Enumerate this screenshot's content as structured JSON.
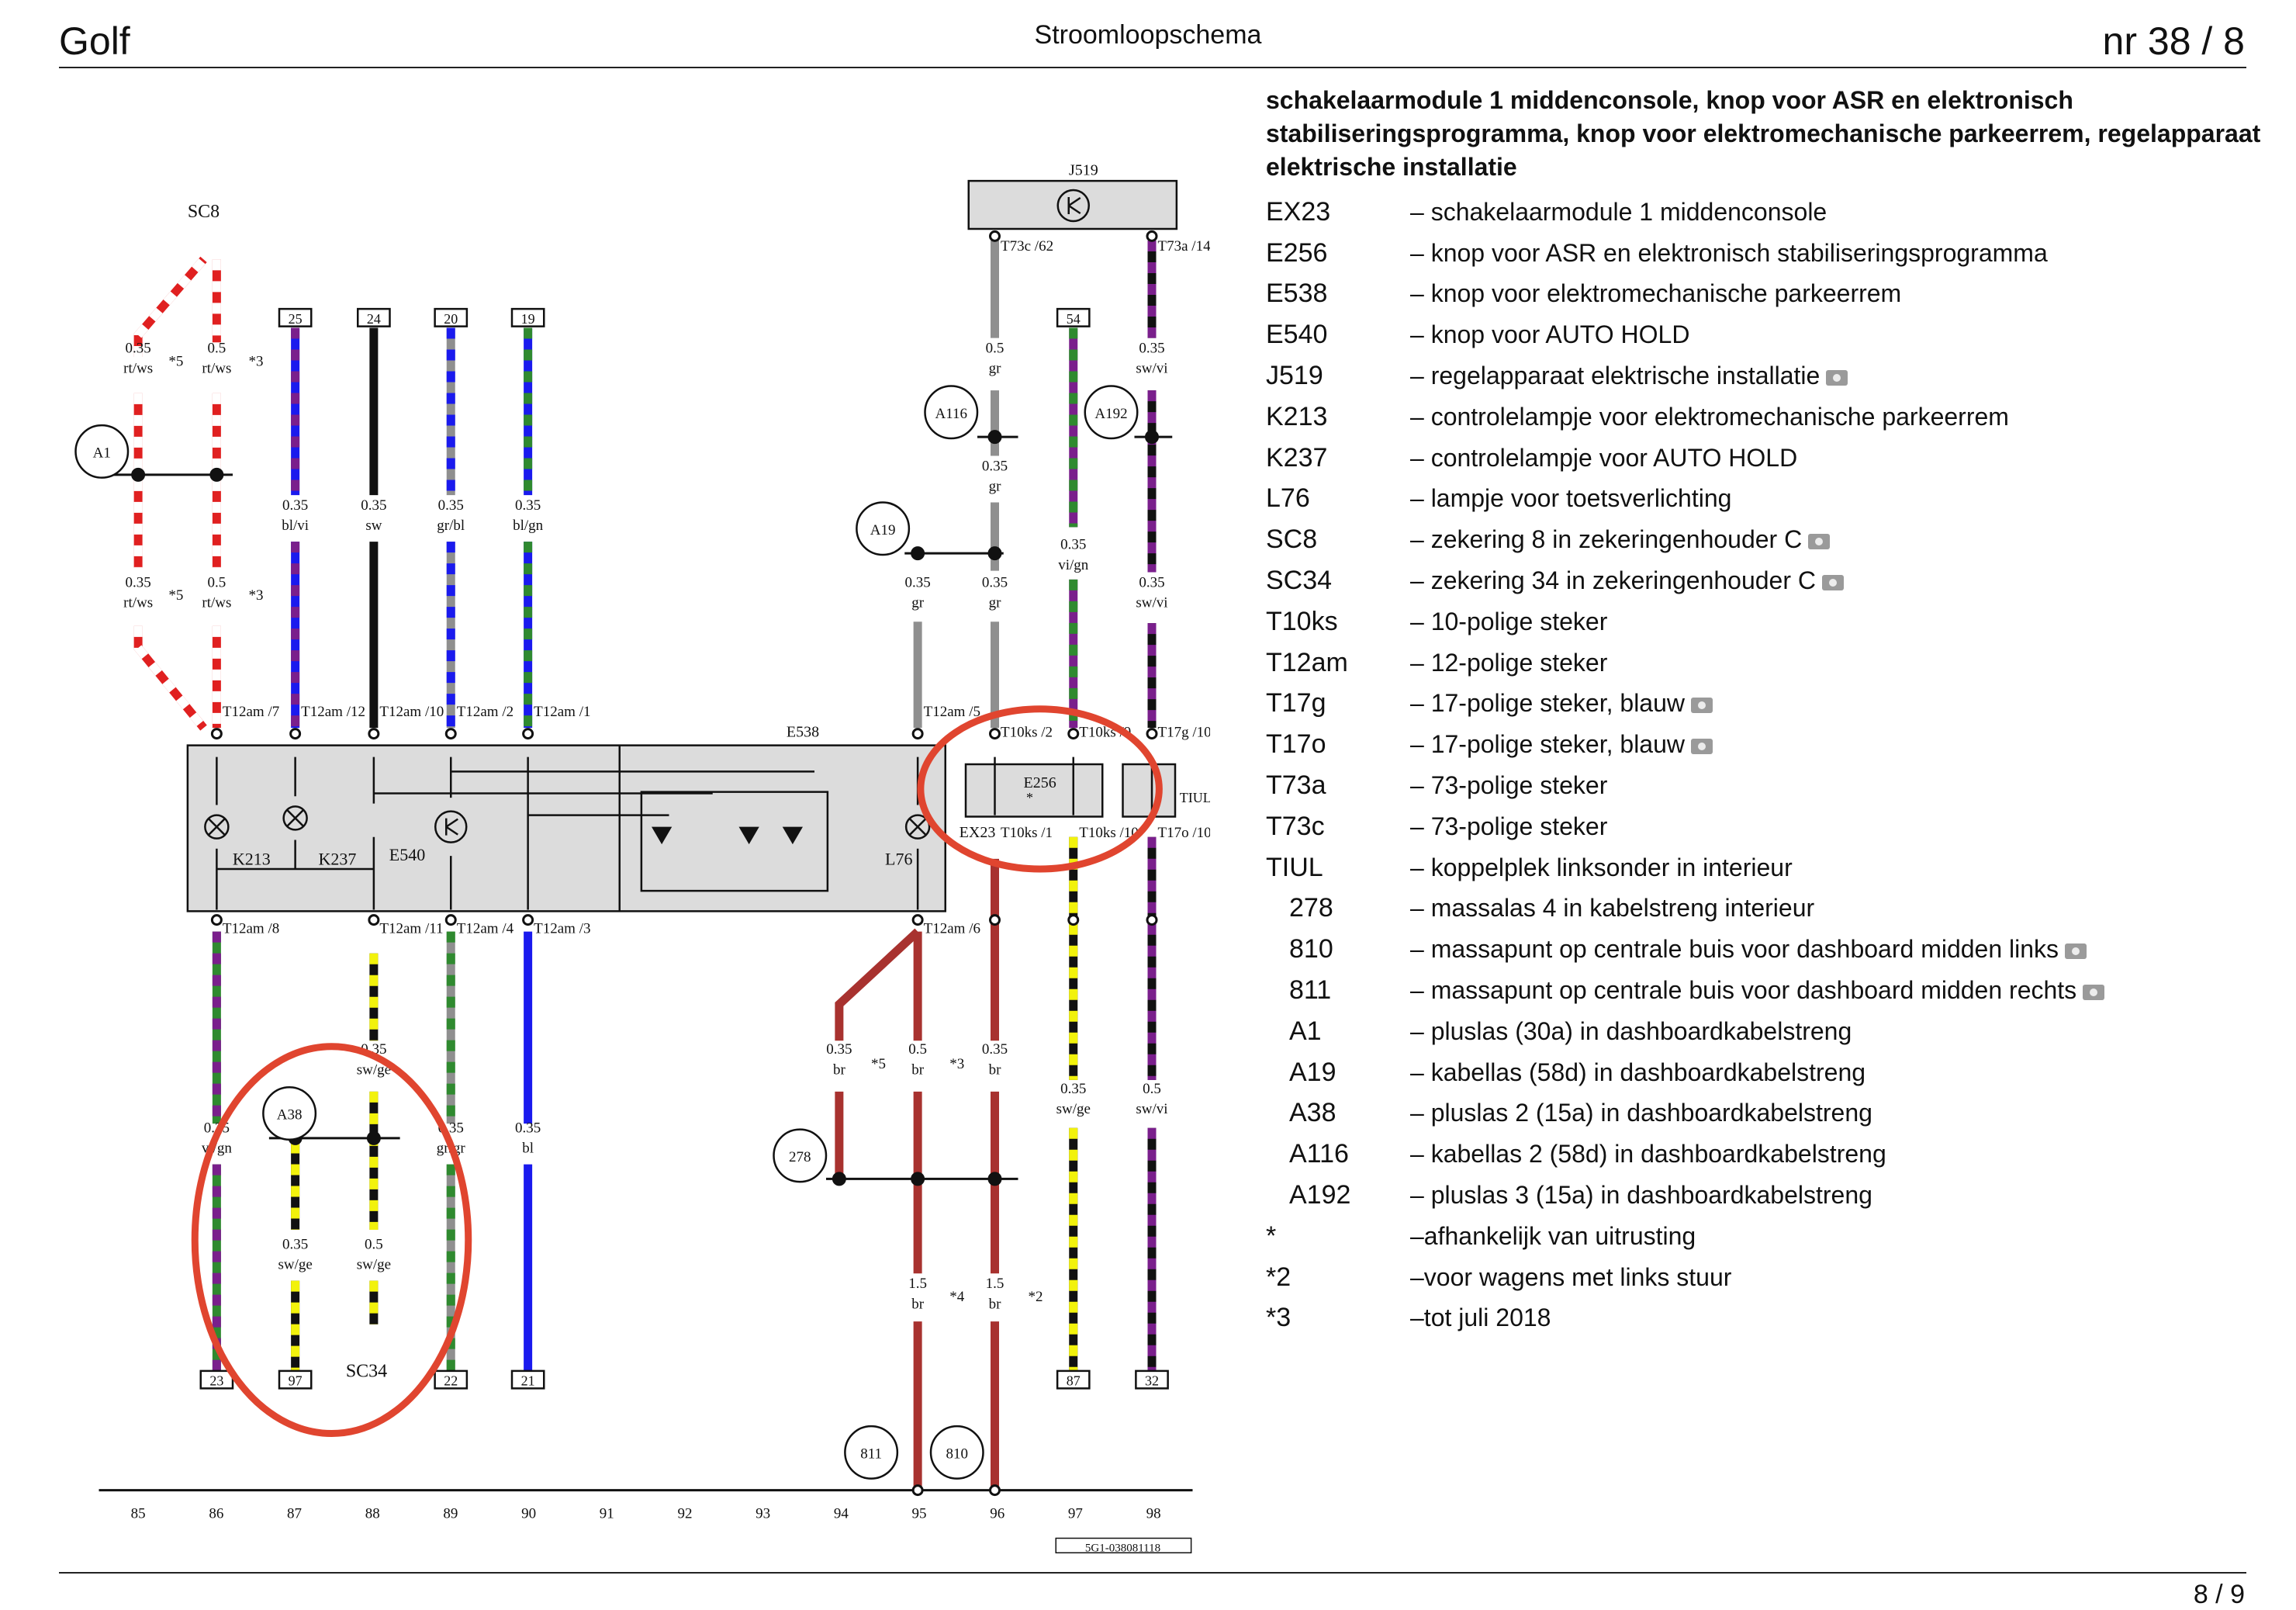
{
  "header": {
    "left": "Golf",
    "center": "Stroomloopschema",
    "right": "nr  38 / 8"
  },
  "footer": {
    "page": "8 /  9"
  },
  "legend": {
    "title": "schakelaarmodule 1 middenconsole, knop voor ASR en elektronisch stabiliseringsprogramma, knop voor elektromechanische parkeerrem, regelapparaat elektrische installatie",
    "items": [
      {
        "code": "EX23",
        "desc": "– schakelaarmodule 1 middenconsole",
        "photo": false,
        "indent": false
      },
      {
        "code": "E256",
        "desc": "– knop voor ASR en elektronisch stabiliseringsprogramma",
        "photo": false,
        "indent": false
      },
      {
        "code": "E538",
        "desc": "– knop voor elektromechanische parkeerrem",
        "photo": false,
        "indent": false
      },
      {
        "code": "E540",
        "desc": "– knop voor AUTO HOLD",
        "photo": false,
        "indent": false
      },
      {
        "code": "J519",
        "desc": "– regelapparaat elektrische installatie",
        "photo": true,
        "indent": false
      },
      {
        "code": "K213",
        "desc": "– controlelampje voor elektromechanische parkeerrem",
        "photo": false,
        "indent": false
      },
      {
        "code": "K237",
        "desc": "– controlelampje voor AUTO HOLD",
        "photo": false,
        "indent": false
      },
      {
        "code": "L76",
        "desc": "– lampje voor toetsverlichting",
        "photo": false,
        "indent": false
      },
      {
        "code": "SC8",
        "desc": "– zekering 8 in zekeringenhouder C",
        "photo": true,
        "indent": false
      },
      {
        "code": "SC34",
        "desc": "– zekering 34 in zekeringenhouder C",
        "photo": true,
        "indent": false
      },
      {
        "code": "T10ks",
        "desc": "– 10-polige steker",
        "photo": false,
        "indent": false
      },
      {
        "code": "T12am",
        "desc": "– 12-polige steker",
        "photo": false,
        "indent": false
      },
      {
        "code": "T17g",
        "desc": "– 17-polige steker, blauw",
        "photo": true,
        "indent": false
      },
      {
        "code": "T17o",
        "desc": "– 17-polige steker, blauw",
        "photo": true,
        "indent": false
      },
      {
        "code": "T73a",
        "desc": "– 73-polige steker",
        "photo": false,
        "indent": false
      },
      {
        "code": "T73c",
        "desc": "– 73-polige steker",
        "photo": false,
        "indent": false
      },
      {
        "code": "TIUL",
        "desc": "– koppelplek linksonder in interieur",
        "photo": false,
        "indent": false
      },
      {
        "code": "278",
        "desc": "– massalas 4 in kabelstreng interieur",
        "photo": false,
        "indent": true
      },
      {
        "code": "810",
        "desc": "– massapunt op centrale buis voor dashboard midden links",
        "photo": true,
        "indent": true
      },
      {
        "code": "811",
        "desc": "– massapunt op centrale buis voor dashboard midden rechts",
        "photo": true,
        "indent": true
      },
      {
        "code": "A1",
        "desc": "– pluslas (30a) in dashboardkabelstreng",
        "photo": false,
        "indent": true
      },
      {
        "code": "A19",
        "desc": "– kabellas (58d) in dashboardkabelstreng",
        "photo": false,
        "indent": true
      },
      {
        "code": "A38",
        "desc": "– pluslas 2 (15a) in dashboardkabelstreng",
        "photo": false,
        "indent": true
      },
      {
        "code": "A116",
        "desc": "– kabellas 2 (58d) in dashboardkabelstreng",
        "photo": false,
        "indent": true
      },
      {
        "code": "A192",
        "desc": "– pluslas 3 (15a) in dashboardkabelstreng",
        "photo": false,
        "indent": true
      },
      {
        "code": "*",
        "desc": "–afhankelijk van uitrusting",
        "photo": false,
        "indent": false
      },
      {
        "code": "*2",
        "desc": "–voor wagens met links stuur",
        "photo": false,
        "indent": false
      },
      {
        "code": "*3",
        "desc": "–tot juli 2018",
        "photo": false,
        "indent": false
      }
    ]
  },
  "diagram": {
    "colors": {
      "red": "#e02020",
      "white": "#ffffff",
      "blue": "#1a1aee",
      "violet": "#7a1f8c",
      "black": "#111111",
      "grey": "#8f8f8f",
      "green": "#2f8a2f",
      "yellow": "#f2f20c",
      "brown": "#a8322f",
      "box": "#dcdcdc",
      "highlight": "#e0452f"
    },
    "wires": [
      {
        "id": "w86",
        "track": 86,
        "colors": [
          "red",
          "white"
        ],
        "top_label": "",
        "ref_top": "",
        "ref_bottom": "23",
        "labels": [
          {
            "size": "0.35",
            "code": "rt/ws",
            "tag": "*5"
          },
          {
            "size": "0.35",
            "code": "rt/ws",
            "tag": "*5"
          },
          {
            "size": "0.35",
            "code": "vi/gn",
            "tag": ""
          }
        ]
      },
      {
        "id": "w87a",
        "track": 87,
        "colors": [
          "red",
          "white"
        ],
        "labels": [
          {
            "size": "0.5",
            "code": "rt/ws",
            "tag": "*3"
          },
          {
            "size": "0.5",
            "code": "rt/ws",
            "tag": "*3"
          }
        ]
      }
    ],
    "top_refs": [
      "25",
      "24",
      "20",
      "19",
      "54"
    ],
    "bottom_refs": [
      "23",
      "97",
      "22",
      "21",
      "87",
      "32"
    ],
    "track_numbers": [
      "85",
      "86",
      "87",
      "88",
      "89",
      "90",
      "91",
      "92",
      "93",
      "94",
      "95",
      "96",
      "97",
      "98"
    ],
    "doc_id": "5G1-038081118",
    "components": {
      "j519": "J519",
      "sc8": "SC8",
      "sc34": "SC34",
      "e538": "E538",
      "e256": "E256",
      "ex23": "EX23",
      "k213": "K213",
      "k237": "K237",
      "e540": "E540",
      "l76": "L76",
      "tiul": "TIUL"
    },
    "splices": [
      "A1",
      "A19",
      "A38",
      "A116",
      "A192",
      "278",
      "811",
      "810"
    ],
    "connectors": {
      "t12am_top": [
        "T12am /7",
        "T12am /12",
        "T12am /10",
        "T12am /2",
        "T12am /1",
        "T12am /5"
      ],
      "t12am_bot": [
        "T12am /8",
        "T12am /11",
        "T12am /4",
        "T12am /3",
        "T12am /6"
      ],
      "t10ks_top": [
        "T10ks /2",
        "T10ks /9"
      ],
      "t10ks_bot": [
        "T10ks /1",
        "T10ks /10"
      ],
      "t17": [
        "T17g /10",
        "T17o /10"
      ],
      "t73": [
        "T73c /62",
        "T73a /14"
      ]
    },
    "wire_labels": [
      [
        "0.35",
        "rt/ws"
      ],
      [
        "0.5",
        "rt/ws"
      ],
      [
        "0.35",
        "bl/vi"
      ],
      [
        "0.35",
        "sw"
      ],
      [
        "0.35",
        "gr/bl"
      ],
      [
        "0.35",
        "bl/gn"
      ],
      [
        "0.5",
        "gr"
      ],
      [
        "0.35",
        "gr"
      ],
      [
        "0.35",
        "gr"
      ],
      [
        "0.35",
        "gr"
      ],
      [
        "0.35",
        "vi/gn"
      ],
      [
        "0.35",
        "sw/vi"
      ],
      [
        "0.35",
        "sw/vi"
      ],
      [
        "0.35",
        "sw/ge"
      ],
      [
        "0.35",
        "vi/gn"
      ],
      [
        "0.35",
        "gr/gr"
      ],
      [
        "0.35",
        "bl"
      ],
      [
        "0.35",
        "br"
      ],
      [
        "0.5",
        "br"
      ],
      [
        "0.35",
        "br"
      ],
      [
        "0.35",
        "sw/ge"
      ],
      [
        "0.5",
        "sw/vi"
      ],
      [
        "0.35",
        "sw/ge"
      ],
      [
        "0.5",
        "sw/ge"
      ],
      [
        "1.5",
        "br"
      ],
      [
        "1.5",
        "br"
      ]
    ],
    "tags": [
      "*5",
      "*3",
      "*5",
      "*3",
      "*5",
      "*3",
      "*4",
      "*2",
      "*"
    ]
  }
}
